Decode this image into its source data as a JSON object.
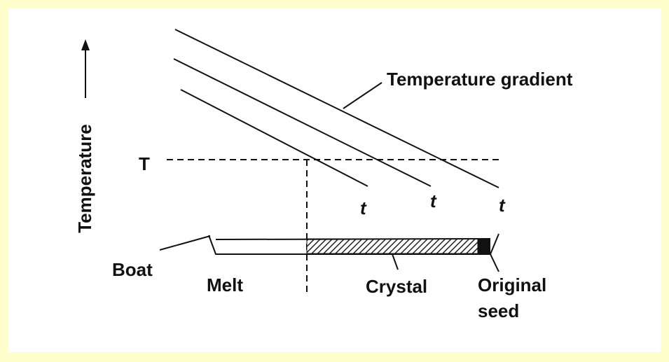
{
  "axis_label": "Temperature",
  "labels": {
    "gradient": "Temperature gradient",
    "T": "T",
    "t": [
      "t",
      "t",
      "t"
    ],
    "boat": "Boat",
    "melt": "Melt",
    "crystal": "Crystal",
    "seed": [
      "Original",
      "seed"
    ]
  }
}
